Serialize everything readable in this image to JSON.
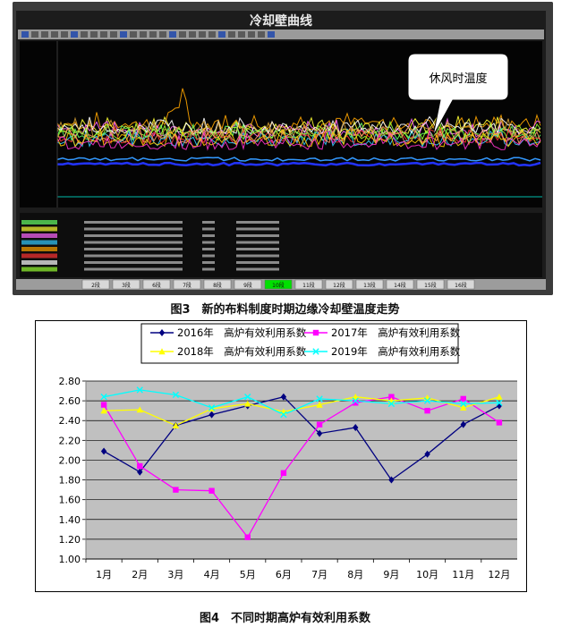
{
  "figure3": {
    "window_title": "冷却壁曲线",
    "callout": "休风时温度",
    "tabs": [
      "2段",
      "3段",
      "6段",
      "7段",
      "8段",
      "9段",
      "10段",
      "11段",
      "12段",
      "13段",
      "14段",
      "15段",
      "16段"
    ],
    "active_tab": 6,
    "caption": "图3　新的布料制度时期边缘冷却壁温度走势",
    "colors": {
      "frame": "#2b2b2b",
      "plot": "#050505",
      "accent": "#00e000"
    }
  },
  "figure4": {
    "caption": "图4　不同时期高炉有效利用系数",
    "chart_data": {
      "type": "line",
      "categories": [
        "1月",
        "2月",
        "3月",
        "4月",
        "5月",
        "6月",
        "7月",
        "8月",
        "9月",
        "10月",
        "11月",
        "12月"
      ],
      "ylim": [
        1.0,
        2.8
      ],
      "yticks": [
        "1.00",
        "1.20",
        "1.40",
        "1.60",
        "1.80",
        "2.00",
        "2.20",
        "2.40",
        "2.60",
        "2.80"
      ],
      "grid": true,
      "legend_position": "top",
      "series": [
        {
          "name": "2016年　高炉有效利用系数",
          "color": "#000080",
          "marker": "diamond",
          "values": [
            2.09,
            1.88,
            2.35,
            2.46,
            2.55,
            2.64,
            2.27,
            2.33,
            1.8,
            2.06,
            2.36,
            2.55
          ]
        },
        {
          "name": "2017年　高炉有效利用系数",
          "color": "#ff00ff",
          "marker": "square",
          "values": [
            2.56,
            1.94,
            1.7,
            1.69,
            1.22,
            1.87,
            2.36,
            2.58,
            2.64,
            2.5,
            2.62,
            2.38
          ]
        },
        {
          "name": "2018年　高炉有效利用系数",
          "color": "#ffff00",
          "marker": "triangle",
          "values": [
            2.5,
            2.51,
            2.35,
            2.52,
            2.57,
            2.49,
            2.56,
            2.64,
            2.6,
            2.63,
            2.53,
            2.64
          ]
        },
        {
          "name": "2019年　高炉有效利用系数",
          "color": "#00ffff",
          "marker": "x",
          "values": [
            2.64,
            2.71,
            2.66,
            2.53,
            2.64,
            2.46,
            2.62,
            2.6,
            2.57,
            2.6,
            2.57,
            2.58
          ]
        }
      ]
    }
  }
}
